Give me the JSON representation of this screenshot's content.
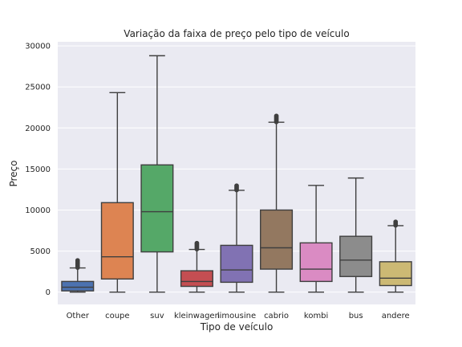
{
  "chart_data": {
    "type": "box",
    "title": "Variação da faixa de preço pelo tipo de veículo",
    "xlabel": "Tipo de veículo",
    "ylabel": "Preço",
    "ylim": [
      -1500,
      30500
    ],
    "yticks": [
      0,
      5000,
      10000,
      15000,
      20000,
      25000,
      30000
    ],
    "ytick_labels": [
      "0",
      "5000",
      "10000",
      "15000",
      "20000",
      "25000",
      "30000"
    ],
    "grid": true,
    "background": "#eaeaf2",
    "categories": [
      "Other",
      "coupe",
      "suv",
      "kleinwagen",
      "limousine",
      "cabrio",
      "kombi",
      "bus",
      "andere"
    ],
    "boxes": [
      {
        "category": "Other",
        "whisker_low": 0,
        "q1": 150,
        "median": 600,
        "q3": 1300,
        "whisker_high": 2950,
        "outliers_range": [
          2950,
          3900
        ],
        "color": "#4c72b0"
      },
      {
        "category": "coupe",
        "whisker_low": 0,
        "q1": 1600,
        "median": 4300,
        "q3": 10900,
        "whisker_high": 24300,
        "color": "#dd8452"
      },
      {
        "category": "suv",
        "whisker_low": 0,
        "q1": 4900,
        "median": 9800,
        "q3": 15500,
        "whisker_high": 28800,
        "color": "#55a868"
      },
      {
        "category": "kleinwagen",
        "whisker_low": 0,
        "q1": 700,
        "median": 1300,
        "q3": 2600,
        "whisker_high": 5200,
        "outliers_range": [
          5200,
          6000
        ],
        "color": "#c44e52"
      },
      {
        "category": "limousine",
        "whisker_low": 0,
        "q1": 1200,
        "median": 2700,
        "q3": 5700,
        "whisker_high": 12400,
        "outliers_range": [
          12400,
          13000
        ],
        "color": "#8172b3"
      },
      {
        "category": "cabrio",
        "whisker_low": 0,
        "q1": 2800,
        "median": 5400,
        "q3": 10000,
        "whisker_high": 20700,
        "outliers_range": [
          20700,
          21500
        ],
        "color": "#937860"
      },
      {
        "category": "kombi",
        "whisker_low": 0,
        "q1": 1300,
        "median": 2800,
        "q3": 6000,
        "whisker_high": 13000,
        "color": "#da8bc3"
      },
      {
        "category": "bus",
        "whisker_low": 0,
        "q1": 1900,
        "median": 3900,
        "q3": 6800,
        "whisker_high": 13900,
        "color": "#8c8c8c"
      },
      {
        "category": "andere",
        "whisker_low": 0,
        "q1": 800,
        "median": 1700,
        "q3": 3700,
        "whisker_high": 8100,
        "outliers_range": [
          8100,
          8600
        ],
        "color": "#ccb974"
      }
    ]
  }
}
